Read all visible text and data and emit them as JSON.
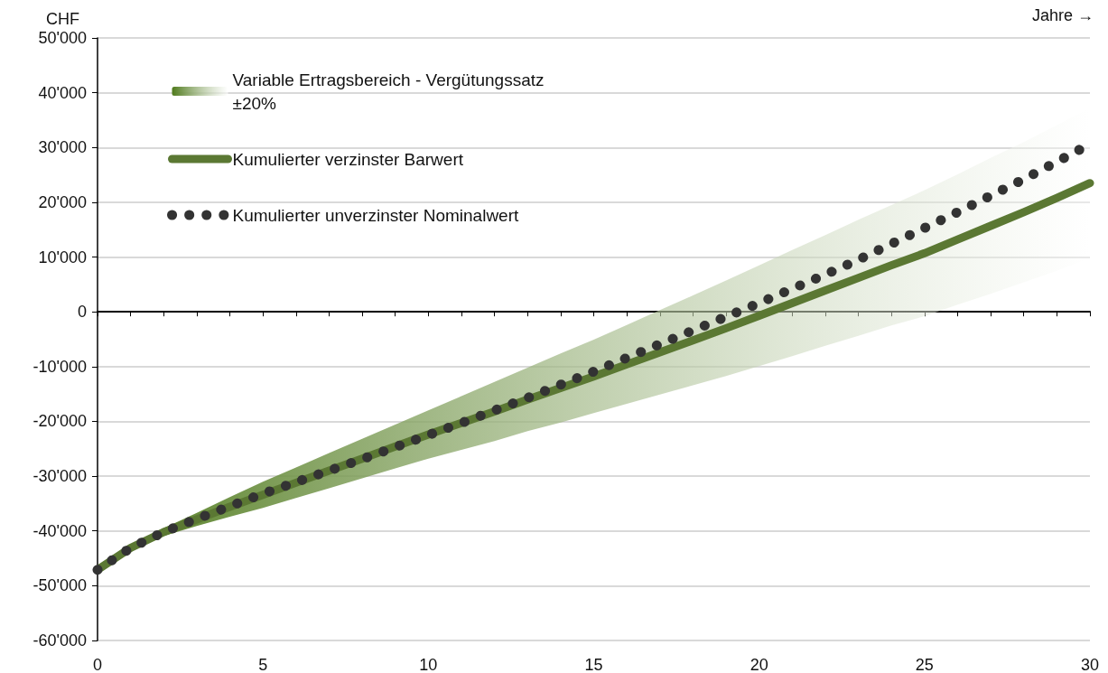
{
  "chart_data": {
    "type": "line",
    "xlabel": "Jahre →",
    "ylabel": "CHF",
    "xlim": [
      0,
      30
    ],
    "xticks": [
      0,
      5,
      10,
      15,
      20,
      25,
      30
    ],
    "ylim": [
      -60000,
      50000
    ],
    "yticks": [
      {
        "value": -60000,
        "label": "-60'000"
      },
      {
        "value": -50000,
        "label": "-50'000"
      },
      {
        "value": -40000,
        "label": "-40'000"
      },
      {
        "value": -30000,
        "label": "-30'000"
      },
      {
        "value": -20000,
        "label": "-20'000"
      },
      {
        "value": -10000,
        "label": "-10'000"
      },
      {
        "value": 0,
        "label": "0"
      },
      {
        "value": 10000,
        "label": "10'000"
      },
      {
        "value": 20000,
        "label": "20'000"
      },
      {
        "value": 30000,
        "label": "30'000"
      },
      {
        "value": 40000,
        "label": "40'000"
      },
      {
        "value": 50000,
        "label": "50'000"
      }
    ],
    "x": [
      0,
      1,
      2,
      3,
      4,
      5,
      6,
      7,
      8,
      9,
      10,
      11,
      12,
      13,
      14,
      15,
      16,
      17,
      18,
      19,
      20,
      21,
      22,
      23,
      24,
      25,
      26,
      27,
      28,
      29,
      30
    ],
    "grid": "y",
    "legend": "top left",
    "series": [
      {
        "name": "Variable Ertragsbereich - Vergütungssatz ±20%",
        "type": "area",
        "color": "#4f7a1c",
        "values": [
          null,
          null,
          null,
          null,
          null,
          null,
          null,
          null,
          null,
          null,
          null,
          null,
          null,
          null,
          null,
          null,
          null,
          null,
          null,
          null,
          null,
          null,
          null,
          null,
          null,
          null,
          null,
          null,
          null,
          null,
          null
        ],
        "upper": [
          -47100,
          -42700,
          -39500,
          -36700,
          -33800,
          -31000,
          -28400,
          -25800,
          -23200,
          -20600,
          -18000,
          -15400,
          -12800,
          -10200,
          -7600,
          -5100,
          -2400,
          300,
          3000,
          5700,
          8500,
          11300,
          14000,
          16800,
          19500,
          22200,
          25100,
          28100,
          31000,
          34100,
          37200
        ],
        "lower": [
          -47100,
          -43500,
          -40900,
          -39100,
          -37400,
          -35800,
          -34000,
          -32200,
          -30400,
          -28600,
          -26800,
          -25200,
          -23600,
          -21800,
          -20200,
          -18500,
          -16800,
          -15100,
          -13400,
          -11700,
          -9900,
          -8100,
          -6200,
          -4400,
          -2500,
          -800,
          1300,
          3300,
          5400,
          7500,
          9800
        ]
      },
      {
        "name": "Kumulierter verzinster Barwert",
        "color": "#5b7833",
        "line_style": "solid",
        "values": [
          -47100,
          -43100,
          -40200,
          -37900,
          -35600,
          -33400,
          -31200,
          -29000,
          -26800,
          -24600,
          -22400,
          -20300,
          -18200,
          -16000,
          -13900,
          -11800,
          -9600,
          -7400,
          -5200,
          -3000,
          -700,
          1600,
          3900,
          6200,
          8500,
          10700,
          13200,
          15700,
          18200,
          20800,
          23500
        ]
      },
      {
        "name": "Kumulierter unverzinster Nominalwert",
        "color": "#333333",
        "line_style": "dotted",
        "values": [
          -47100,
          -43100,
          -40200,
          -37800,
          -35500,
          -33200,
          -31100,
          -29000,
          -26900,
          -24700,
          -22500,
          -20300,
          -18000,
          -15700,
          -13300,
          -10900,
          -8400,
          -5900,
          -3400,
          -900,
          1600,
          4200,
          6800,
          9500,
          12400,
          15300,
          18200,
          21200,
          24200,
          27400,
          30600
        ]
      }
    ]
  }
}
